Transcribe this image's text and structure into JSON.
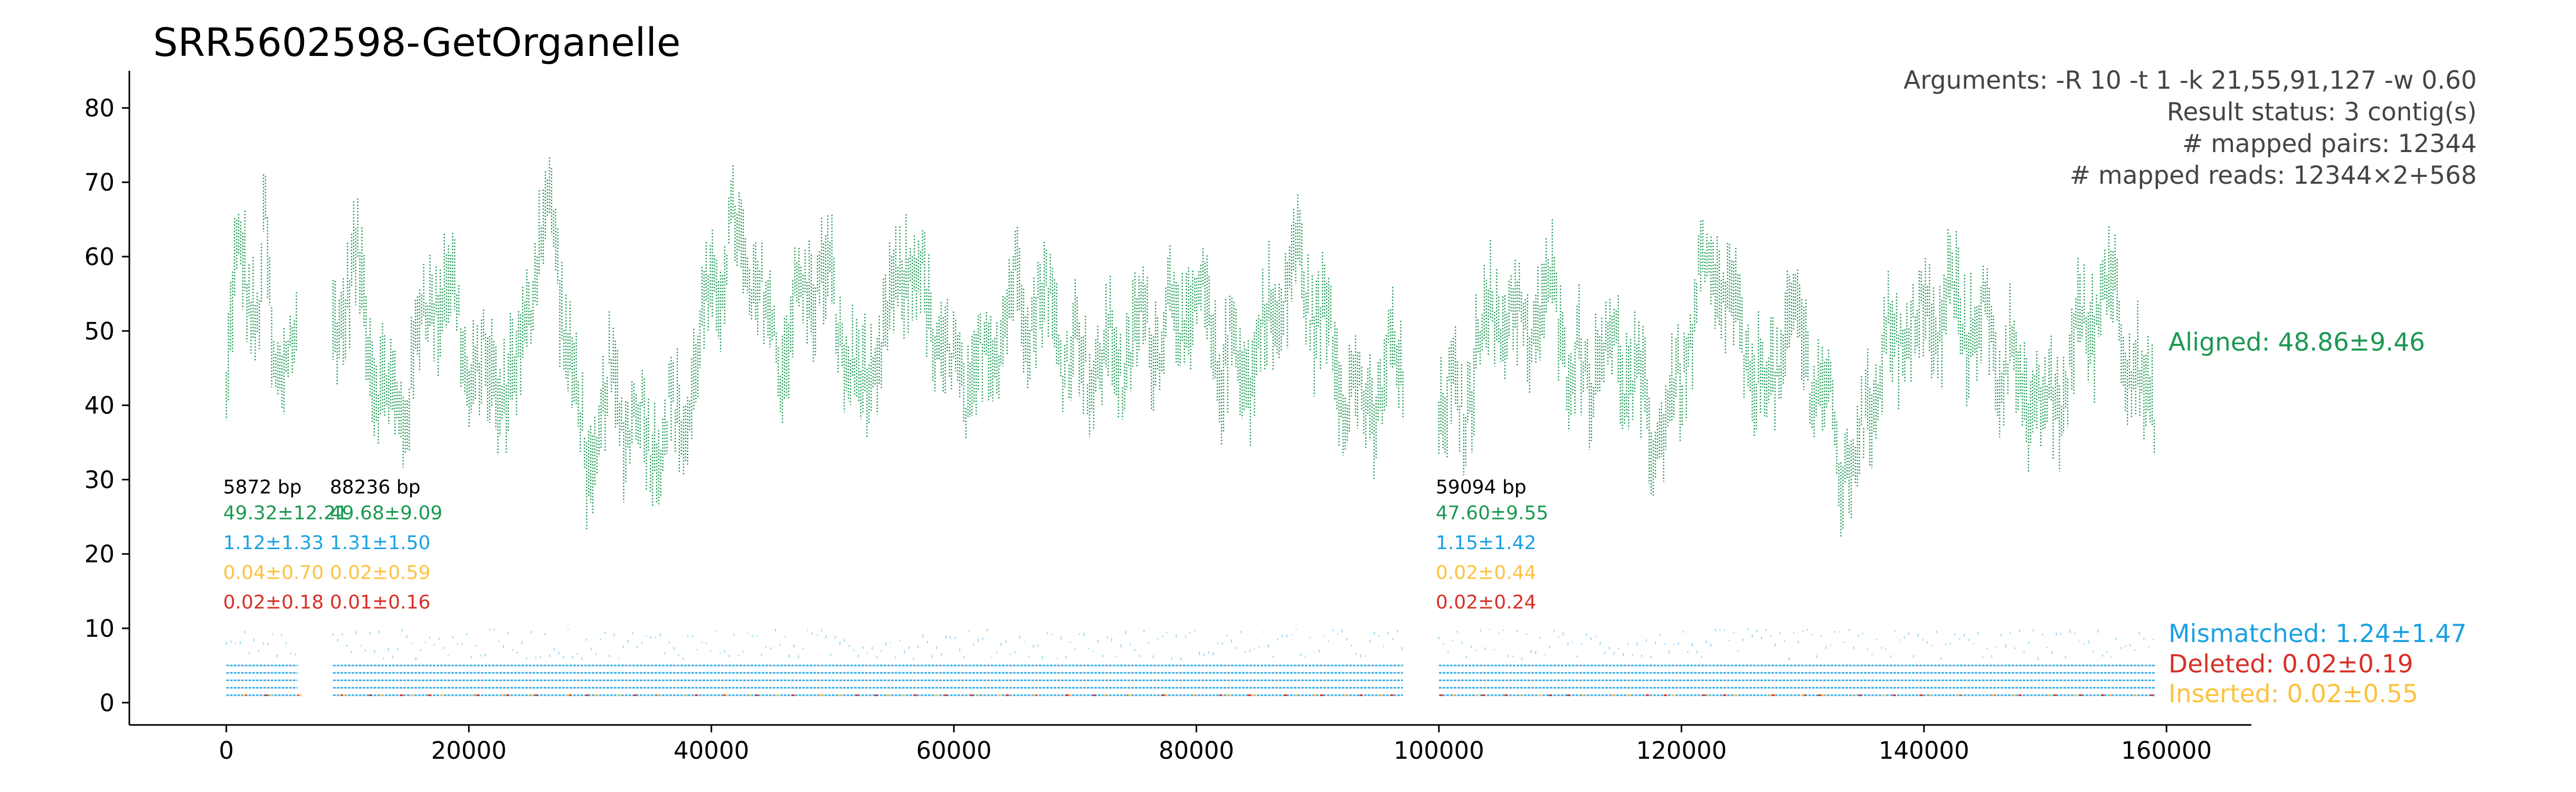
{
  "colors": {
    "aligned": "#1a9850",
    "mismatched": "#1ba1e2",
    "deleted": "#d73027",
    "inserted": "#fdc23e",
    "text": "#000000",
    "annotation": "#444444"
  },
  "chart_data": {
    "type": "scatter",
    "title": "SRR5602598-GetOrganelle",
    "xlabel": "",
    "ylabel": "",
    "xlim": [
      -8000,
      167000
    ],
    "ylim": [
      -3,
      85
    ],
    "x_ticks": [
      0,
      20000,
      40000,
      60000,
      80000,
      100000,
      120000,
      140000,
      160000
    ],
    "x_tick_labels": [
      "0",
      "20000",
      "40000",
      "60000",
      "80000",
      "100000",
      "120000",
      "140000",
      "160000"
    ],
    "y_ticks": [
      0,
      10,
      20,
      30,
      40,
      50,
      60,
      70,
      80
    ],
    "y_tick_labels": [
      "0",
      "10",
      "20",
      "30",
      "40",
      "50",
      "60",
      "70",
      "80"
    ],
    "grid": false,
    "info_lines": [
      "Arguments: -R 10 -t 1 -k 21,55,91,127 -w 0.60",
      "Result status: 3 contig(s)",
      "# mapped pairs: 12344",
      "# mapped reads: 12344×2+568"
    ],
    "contigs": [
      {
        "start": 0,
        "end": 5872,
        "length_label": "5872 bp",
        "aligned": "49.32±12.21",
        "mismatched": "1.12±1.33",
        "inserted": "0.04±0.70",
        "deleted": "0.02±0.18"
      },
      {
        "start": 8800,
        "end": 97036,
        "length_label": "88236 bp",
        "aligned": "49.68±9.09",
        "mismatched": "1.31±1.50",
        "inserted": "0.02±0.59",
        "deleted": "0.01±0.16"
      },
      {
        "start": 100000,
        "end": 159094,
        "length_label": "59094 bp",
        "aligned": "47.60±9.55",
        "mismatched": "1.15±1.42",
        "inserted": "0.02±0.44",
        "deleted": "0.02±0.24"
      }
    ],
    "series": [
      {
        "name": "Aligned: 48.86±9.46",
        "key": "aligned",
        "label_y": 48.5
      },
      {
        "name": "Mismatched: 1.24±1.47",
        "key": "mismatched",
        "label_y": 9.3
      },
      {
        "name": "Deleted: 0.02±0.19",
        "key": "deleted",
        "label_y": 5.2
      },
      {
        "name": "Inserted: 0.02±0.55",
        "key": "inserted",
        "label_y": 1.2
      }
    ],
    "aligned_profile": [
      [
        0,
        40
      ],
      [
        600,
        52
      ],
      [
        1300,
        58
      ],
      [
        2000,
        52
      ],
      [
        2600,
        46
      ],
      [
        3200,
        61
      ],
      [
        3800,
        44
      ],
      [
        4400,
        48
      ],
      [
        5000,
        52
      ],
      [
        5872,
        49
      ],
      [
        8800,
        47
      ],
      [
        10500,
        55
      ],
      [
        12000,
        48
      ],
      [
        14000,
        42
      ],
      [
        16000,
        50
      ],
      [
        18000,
        53
      ],
      [
        20000,
        45
      ],
      [
        22000,
        48
      ],
      [
        24000,
        43
      ],
      [
        25500,
        57
      ],
      [
        27000,
        62
      ],
      [
        28500,
        45
      ],
      [
        30000,
        35
      ],
      [
        31500,
        43
      ],
      [
        33000,
        36
      ],
      [
        34500,
        32
      ],
      [
        36000,
        37
      ],
      [
        38000,
        44
      ],
      [
        40000,
        55
      ],
      [
        42000,
        58
      ],
      [
        44000,
        54
      ],
      [
        46000,
        52
      ],
      [
        48000,
        57
      ],
      [
        50000,
        50
      ],
      [
        52000,
        42
      ],
      [
        54000,
        51
      ],
      [
        56000,
        60
      ],
      [
        58000,
        47
      ],
      [
        60000,
        44
      ],
      [
        62000,
        48
      ],
      [
        64000,
        52
      ],
      [
        66000,
        50
      ],
      [
        68000,
        53
      ],
      [
        70000,
        51
      ],
      [
        72000,
        45
      ],
      [
        74000,
        42
      ],
      [
        76000,
        51
      ],
      [
        78000,
        57
      ],
      [
        80000,
        52
      ],
      [
        82000,
        42
      ],
      [
        84000,
        46
      ],
      [
        86000,
        55
      ],
      [
        88000,
        58
      ],
      [
        90000,
        48
      ],
      [
        92000,
        46
      ],
      [
        94000,
        43
      ],
      [
        96000,
        44
      ],
      [
        97036,
        42
      ],
      [
        100000,
        41
      ],
      [
        102000,
        44
      ],
      [
        104000,
        52
      ],
      [
        106000,
        47
      ],
      [
        108000,
        51
      ],
      [
        109500,
        60
      ],
      [
        111000,
        46
      ],
      [
        113000,
        43
      ],
      [
        115000,
        45
      ],
      [
        117000,
        42
      ],
      [
        119000,
        40
      ],
      [
        121000,
        48
      ],
      [
        123000,
        56
      ],
      [
        125000,
        52
      ],
      [
        127000,
        44
      ],
      [
        129000,
        47
      ],
      [
        131000,
        43
      ],
      [
        133000,
        37
      ],
      [
        134500,
        35
      ],
      [
        136000,
        44
      ],
      [
        138000,
        45
      ],
      [
        140000,
        52
      ],
      [
        142000,
        58
      ],
      [
        144000,
        50
      ],
      [
        146000,
        43
      ],
      [
        148000,
        45
      ],
      [
        150000,
        42
      ],
      [
        152000,
        44
      ],
      [
        154000,
        49
      ],
      [
        156000,
        57
      ],
      [
        158000,
        43
      ],
      [
        159094,
        45
      ]
    ]
  }
}
